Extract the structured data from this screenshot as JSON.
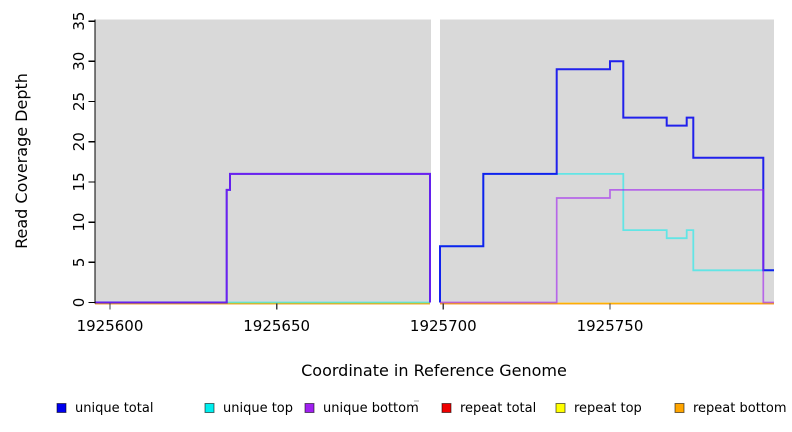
{
  "chart_data": {
    "type": "line",
    "subtype": "step-coverage",
    "title": "",
    "xlabel": "Coordinate in Reference Genome",
    "ylabel": "Read Coverage Depth",
    "xlim": [
      1925595.5,
      1925799.2
    ],
    "ylim": [
      0,
      35.2
    ],
    "background": "#d9d9d9",
    "no_data_gap": [
      1925696.3,
      1925699.0
    ],
    "axis_color": "#000000",
    "tick_color": "#404040",
    "xticks": [
      {
        "value": 1925600,
        "label": "1925600"
      },
      {
        "value": 1925650,
        "label": "1925650"
      },
      {
        "value": 1925700,
        "label": "1925700"
      },
      {
        "value": 1925750,
        "label": "1925750"
      }
    ],
    "yticks": [
      {
        "value": 0,
        "label": "0"
      },
      {
        "value": 5,
        "label": "5"
      },
      {
        "value": 10,
        "label": "10"
      },
      {
        "value": 15,
        "label": "15"
      },
      {
        "value": 20,
        "label": "20"
      },
      {
        "value": 25,
        "label": "25"
      },
      {
        "value": 30,
        "label": "30"
      },
      {
        "value": 35,
        "label": "35"
      }
    ],
    "legend_position": "bottom",
    "legend": [
      {
        "label": "unique total",
        "color": "#0000EE"
      },
      {
        "label": "unique top",
        "color": "#00EEEE"
      },
      {
        "label": "unique bottom",
        "color": "#A020F0"
      },
      {
        "label": "repeat total",
        "color": "#EE0000"
      },
      {
        "label": "repeat top",
        "color": "#FFFF00"
      },
      {
        "label": "repeat bottom",
        "color": "#FFA500"
      }
    ],
    "series": [
      {
        "name": "repeat total",
        "color": "#E00000",
        "opacity": 0.8,
        "width": 1.4,
        "dy": 1.2,
        "segments": [
          [
            [
              1925595.5,
              0
            ],
            [
              1925696,
              0
            ]
          ],
          [
            [
              1925699,
              0
            ],
            [
              1925799.2,
              0
            ]
          ]
        ]
      },
      {
        "name": "repeat top",
        "color": "#FFFF00",
        "opacity": 0.8,
        "width": 1.4,
        "dy": 1.0,
        "segments": [
          [
            [
              1925595.5,
              0
            ],
            [
              1925696,
              0
            ]
          ],
          [
            [
              1925699,
              0
            ],
            [
              1925799.2,
              0
            ]
          ]
        ]
      },
      {
        "name": "repeat bottom",
        "color": "#FFA500",
        "opacity": 0.8,
        "width": 1.4,
        "dy": 0.8,
        "segments": [
          [
            [
              1925595.5,
              0
            ],
            [
              1925696,
              0
            ]
          ],
          [
            [
              1925699,
              0
            ],
            [
              1925799.2,
              0
            ]
          ]
        ]
      },
      {
        "name": "unique top",
        "color": "#00EEEE",
        "opacity": 0.55,
        "width": 1.8,
        "dy": 0,
        "segments": [
          [
            [
              1925595.5,
              0
            ],
            [
              1925696,
              0
            ]
          ],
          [
            [
              1925699,
              0
            ],
            [
              1925699,
              7
            ],
            [
              1925712,
              16
            ],
            [
              1925754,
              9
            ],
            [
              1925767,
              8
            ],
            [
              1925773,
              9
            ],
            [
              1925775,
              4
            ],
            [
              1925799.2,
              4
            ]
          ]
        ]
      },
      {
        "name": "unique total",
        "color": "#0000EE",
        "opacity": 0.85,
        "width": 2.0,
        "dy": 0,
        "segments": [
          [
            [
              1925595.5,
              0
            ],
            [
              1925635,
              14
            ],
            [
              1925636,
              16
            ],
            [
              1925696,
              0
            ]
          ],
          [
            [
              1925699,
              0
            ],
            [
              1925699,
              7
            ],
            [
              1925712,
              16
            ],
            [
              1925734,
              29
            ],
            [
              1925750,
              30
            ],
            [
              1925754,
              23
            ],
            [
              1925767,
              22
            ],
            [
              1925773,
              23
            ],
            [
              1925775,
              18
            ],
            [
              1925796,
              4
            ],
            [
              1925799.2,
              4
            ]
          ]
        ]
      },
      {
        "name": "unique bottom",
        "color": "#A020F0",
        "opacity": 0.62,
        "width": 1.7,
        "dy": 0,
        "segments": [
          [
            [
              1925595.5,
              0
            ],
            [
              1925635,
              14
            ],
            [
              1925636,
              16
            ],
            [
              1925696,
              0
            ]
          ],
          [
            [
              1925699,
              0
            ],
            [
              1925734,
              13
            ],
            [
              1925750,
              14
            ],
            [
              1925796,
              0
            ],
            [
              1925799.2,
              0
            ]
          ]
        ]
      }
    ]
  }
}
